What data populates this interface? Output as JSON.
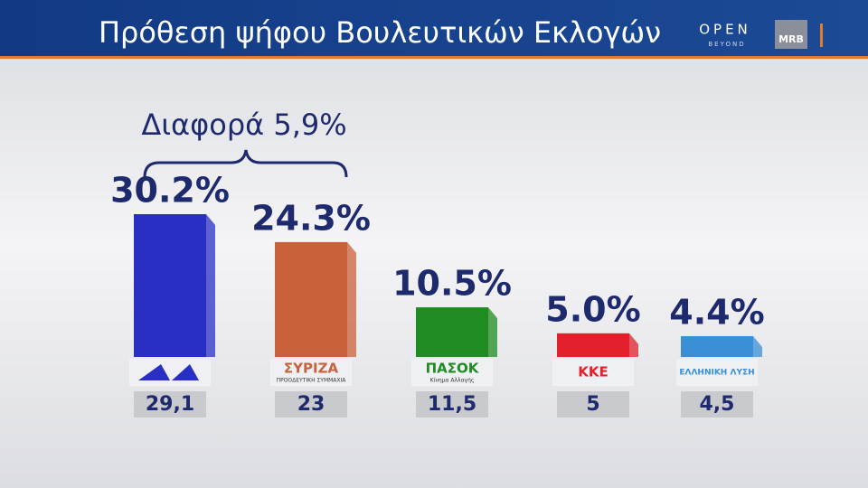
{
  "chart_data": {
    "type": "bar",
    "title": "Πρόθεση ψήφου Βουλευτικών Εκλογών",
    "brand": "OPEN",
    "brand_sub": "BEYOND",
    "pollster": "MRB",
    "annotation": "Διαφορά 5,9%",
    "categories": [
      null,
      "ΣΥΡΙΖΑ",
      "ΠΑΣΟΚ",
      "ΚΚΕ",
      "ΕΛΛΗΝΙΚΗ ΛΥΣΗ"
    ],
    "category_subtexts": [
      null,
      "ΠΡΟΟΔΕΥΤΙΚΗ ΣΥΜΜΑΧΙΑ",
      "Κίνημα Αλλαγής",
      null,
      null
    ],
    "values": [
      30.2,
      24.3,
      10.5,
      5.0,
      4.4
    ],
    "value_labels": [
      "30.2%",
      "24.3%",
      "10.5%",
      "5.0%",
      "4.4%"
    ],
    "colors": [
      "#2a2fc4",
      "#c9623a",
      "#1f8c22",
      "#e3202b",
      "#3b8fd6"
    ],
    "previous": {
      "values": [
        29.1,
        23,
        11.5,
        5,
        4.5
      ],
      "value_labels": [
        "29,1",
        "23",
        "11,5",
        "5",
        "4,5"
      ]
    }
  }
}
